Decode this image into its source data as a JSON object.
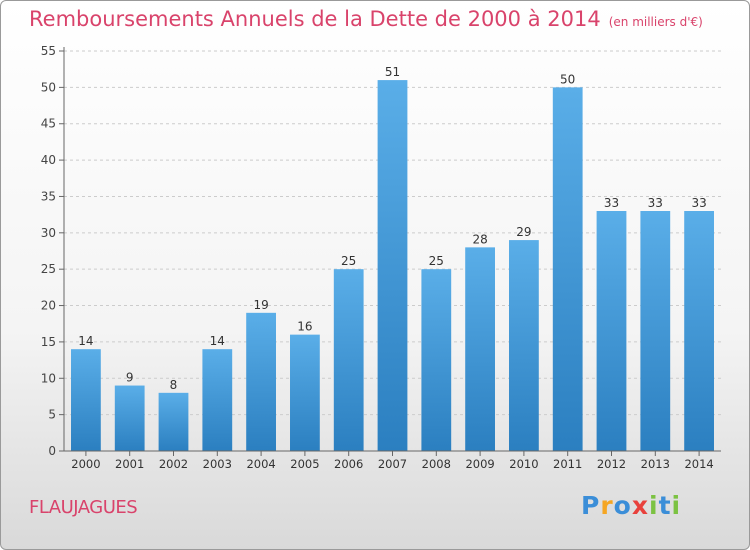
{
  "header": {
    "title": "Remboursements Annuels de la Dette de 2000 à 2014",
    "unit": "(en milliers d'€)"
  },
  "footer": {
    "commune": "FLAUJAGUES",
    "logo_text": "Proxiti"
  },
  "colors": {
    "title": "#d9436b",
    "bar_top": "#5aaee8",
    "bar_bottom": "#2b7fc0",
    "axis": "#666666",
    "grid": "#cccccc"
  },
  "chart_data": {
    "type": "bar",
    "title": "Remboursements Annuels de la Dette de 2000 à 2014",
    "xlabel": "",
    "ylabel": "",
    "categories": [
      "2000",
      "2001",
      "2002",
      "2003",
      "2004",
      "2005",
      "2006",
      "2007",
      "2008",
      "2009",
      "2010",
      "2011",
      "2012",
      "2013",
      "2014"
    ],
    "values": [
      14,
      9,
      8,
      14,
      19,
      16,
      25,
      51,
      25,
      28,
      29,
      50,
      33,
      33,
      33
    ],
    "ylim": [
      0,
      55
    ],
    "yticks": [
      0,
      5,
      10,
      15,
      20,
      25,
      30,
      35,
      40,
      45,
      50,
      55
    ],
    "grid": "dashed horizontal",
    "legend": "none"
  }
}
